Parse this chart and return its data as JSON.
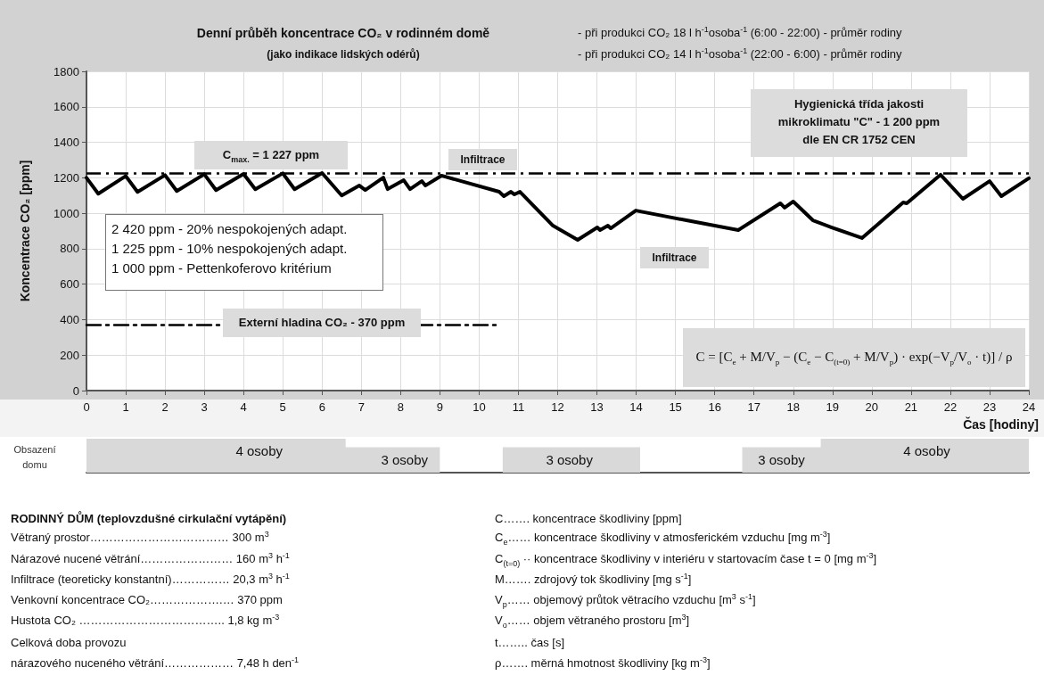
{
  "chart_data": [
    {
      "type": "line",
      "title": "Denní průběh koncentrace CO₂ v rodinném domě",
      "subtitle": "(jako indikace lidských odérů)",
      "xlabel": "Čas   [hodiny]",
      "ylabel": "Koncentrace CO₂ [ppm]",
      "x": [
        0,
        0.3,
        1,
        1.3,
        2,
        2.3,
        3,
        3.3,
        4,
        4.3,
        5,
        5.3,
        6,
        6.5,
        6.95,
        7.1,
        7.56,
        7.67,
        8.08,
        8.24,
        8.54,
        8.63,
        9.04,
        10.51,
        10.63,
        10.81,
        10.9,
        11.04,
        11.88,
        12.51,
        13.01,
        13.08,
        13.28,
        13.35,
        13.99,
        15.28,
        16.6,
        17.67,
        17.78,
        18.0,
        18.5,
        18.98,
        19.75,
        20.8,
        20.89,
        21.75,
        22.32,
        23.0,
        23.3,
        24
      ],
      "series": [
        {
          "color": "#000000",
          "values": [
            1200,
            1110,
            1210,
            1120,
            1215,
            1125,
            1220,
            1130,
            1222,
            1135,
            1225,
            1135,
            1227,
            1100,
            1156,
            1131,
            1201,
            1136,
            1186,
            1136,
            1181,
            1156,
            1212,
            1121,
            1096,
            1121,
            1106,
            1121,
            930,
            850,
            920,
            905,
            930,
            915,
            1015,
            960,
            905,
            1056,
            1031,
            1066,
            960,
            920,
            860,
            1061,
            1056,
            1217,
            1081,
            1181,
            1096,
            1197
          ]
        },
        {
          "name": "Externí hladina CO₂ - 370 ppm",
          "color": "#000000",
          "x": [
            0,
            10.5
          ],
          "values": [
            370,
            370
          ],
          "line_style": "dashed"
        }
      ],
      "xlim": [
        0,
        24
      ],
      "xticks": [
        0,
        1,
        2,
        3,
        4,
        5,
        6,
        7,
        8,
        9,
        10,
        11,
        12,
        13,
        14,
        15,
        16,
        17,
        18,
        19,
        20,
        21,
        22,
        23,
        24
      ],
      "ylim": [
        0,
        1800
      ],
      "yticks": [
        0,
        200,
        400,
        600,
        800,
        1000,
        1200,
        1400,
        1600,
        1800
      ],
      "grid": true,
      "marker": "none",
      "line_style": "solid",
      "ref_lines": [
        {
          "axis": "y",
          "value": 1227,
          "label": "C$_{max.}$ =  1 227 ppm",
          "color": "#000000",
          "line_style": "dashed"
        }
      ],
      "annotations": [
        "- při produkci CO₂ 18 l h$^{-1}$osoba$^{-1}$ (6:00 - 22:00) - průměr rodiny",
        "- při produkci CO₂ 14 l h$^{-1}$osoba$^{-1}$ (22:00 - 6:00) - průměr rodiny",
        "2 420 ppm - 20% nespokojených adapt.",
        "1 225 ppm - 10% nespokojených adapt.",
        "1 000 ppm - Pettenkoferovo kritérium",
        "Hygienická třída jakosti",
        "mikroklimatu \"C\"  - 1 200 ppm",
        "dle EN CR 1752 CEN",
        "C = [C$_{e}$ + M/V$_{p}$ − (C$_{e}$ − C$_{(t=0)}$ + M/V$_{p}$) · exp(−V$_{p}$/V$_{o}$ · t)] / ρ",
        "Infiltrace",
        "Infiltrace"
      ]
    },
    {
      "type": "area",
      "ylabel": "Obsazení domu",
      "tick_labels": false,
      "x": [
        0,
        4.4,
        6.6,
        8.1,
        9,
        10.6,
        12.3,
        14.1,
        16.7,
        17.7,
        18.7,
        21.4,
        24
      ],
      "values": [
        4,
        4,
        3,
        3,
        0,
        3,
        3,
        0,
        3,
        3,
        4,
        4,
        4
      ],
      "value_labels": [
        null,
        "4 osoby",
        null,
        "3 osoby",
        null,
        null,
        "3 osoby",
        null,
        null,
        "3 osoby",
        null,
        "4 osoby",
        null
      ],
      "color": "#d9d9d9",
      "xlim": [
        0,
        24
      ],
      "annotations": [
        "RODINNÝ DŮM (teplovzdušné cirkulační vytápění)",
        "Větraný prostor……………………………… 300 m$^{3}$",
        "Nárazové nucené větrání…………………… 160 m$^{3}$ h$^{-1}$",
        "Infiltrace (teoreticky konstantní)…………… 20,3 m$^{3}$ h$^{-1}$",
        "Venkovní koncentrace CO₂……………….… 370 ppm",
        "Hustota CO₂ ……………………………….. 1,8 kg m$^{-3}$",
        "Celková doba provozu",
        "nárazového nuceného větrání……………… 7,48 h den$^{-1}$",
        "C……. koncentrace škodliviny  [ppm]",
        "C$_{e}$…… koncentrace škodliviny v atmosferickém vzduchu [mg m$^{-3}$]",
        "C$_{(t=0)}$ ·· koncentrace škodliviny v interiéru v startovacím čase t = 0  [mg m$^{-3}$]",
        "M……. zdrojový tok škodliviny  [mg s$^{-1}$]",
        "V$_{p}$…… objemový průtok větracího vzduchu [m$^{3}$ s$^{-1}$]",
        "V$_{o}$…… objem větraného prostoru  [m$^{3}$]",
        "t…….. čas [s]",
        "ρ……. měrná hmotnost škodliviny  [kg m$^{-3}$]"
      ]
    }
  ]
}
